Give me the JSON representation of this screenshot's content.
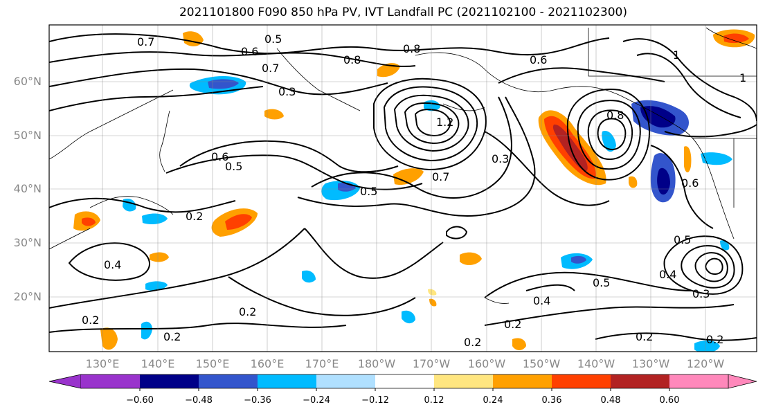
{
  "title": "2021101800 F090 850 hPa PV, IVT Landfall PC (2021102100 - 2021102300)",
  "lat_labels": [
    "60°N",
    "50°N",
    "40°N",
    "30°N",
    "20°N"
  ],
  "lon_labels": [
    "130°E",
    "140°E",
    "150°E",
    "160°E",
    "170°E",
    "180°W",
    "170°W",
    "160°W",
    "150°W",
    "140°W",
    "130°W",
    "120°W"
  ],
  "colorbar": {
    "ticks": [
      "−0.60",
      "−0.48",
      "−0.36",
      "−0.24",
      "−0.12",
      "0.12",
      "0.24",
      "0.36",
      "0.48",
      "0.60"
    ],
    "colors": [
      "#9933cc",
      "#000088",
      "#3355cc",
      "#00bbff",
      "#b0e0ff",
      "#ffffff",
      "#ffe680",
      "#ffa000",
      "#ff4000",
      "#b22222",
      "#ff88bb"
    ]
  },
  "contour_labels": [
    "0.7",
    "0.6",
    "0.5",
    "0.8",
    "0.7",
    "0.3",
    "0.8",
    "0.6",
    "1.2",
    "0.7",
    "0.5",
    "0.6",
    "0.5",
    "0.3",
    "0.8",
    "0.2",
    "0.2",
    "0.4",
    "0.2",
    "0.2",
    "0.2",
    "0.2",
    "0.4",
    "0.5",
    "0.4",
    "0.3",
    "0.5",
    "0.2",
    "0.2",
    "1",
    "0.6",
    "1"
  ]
}
